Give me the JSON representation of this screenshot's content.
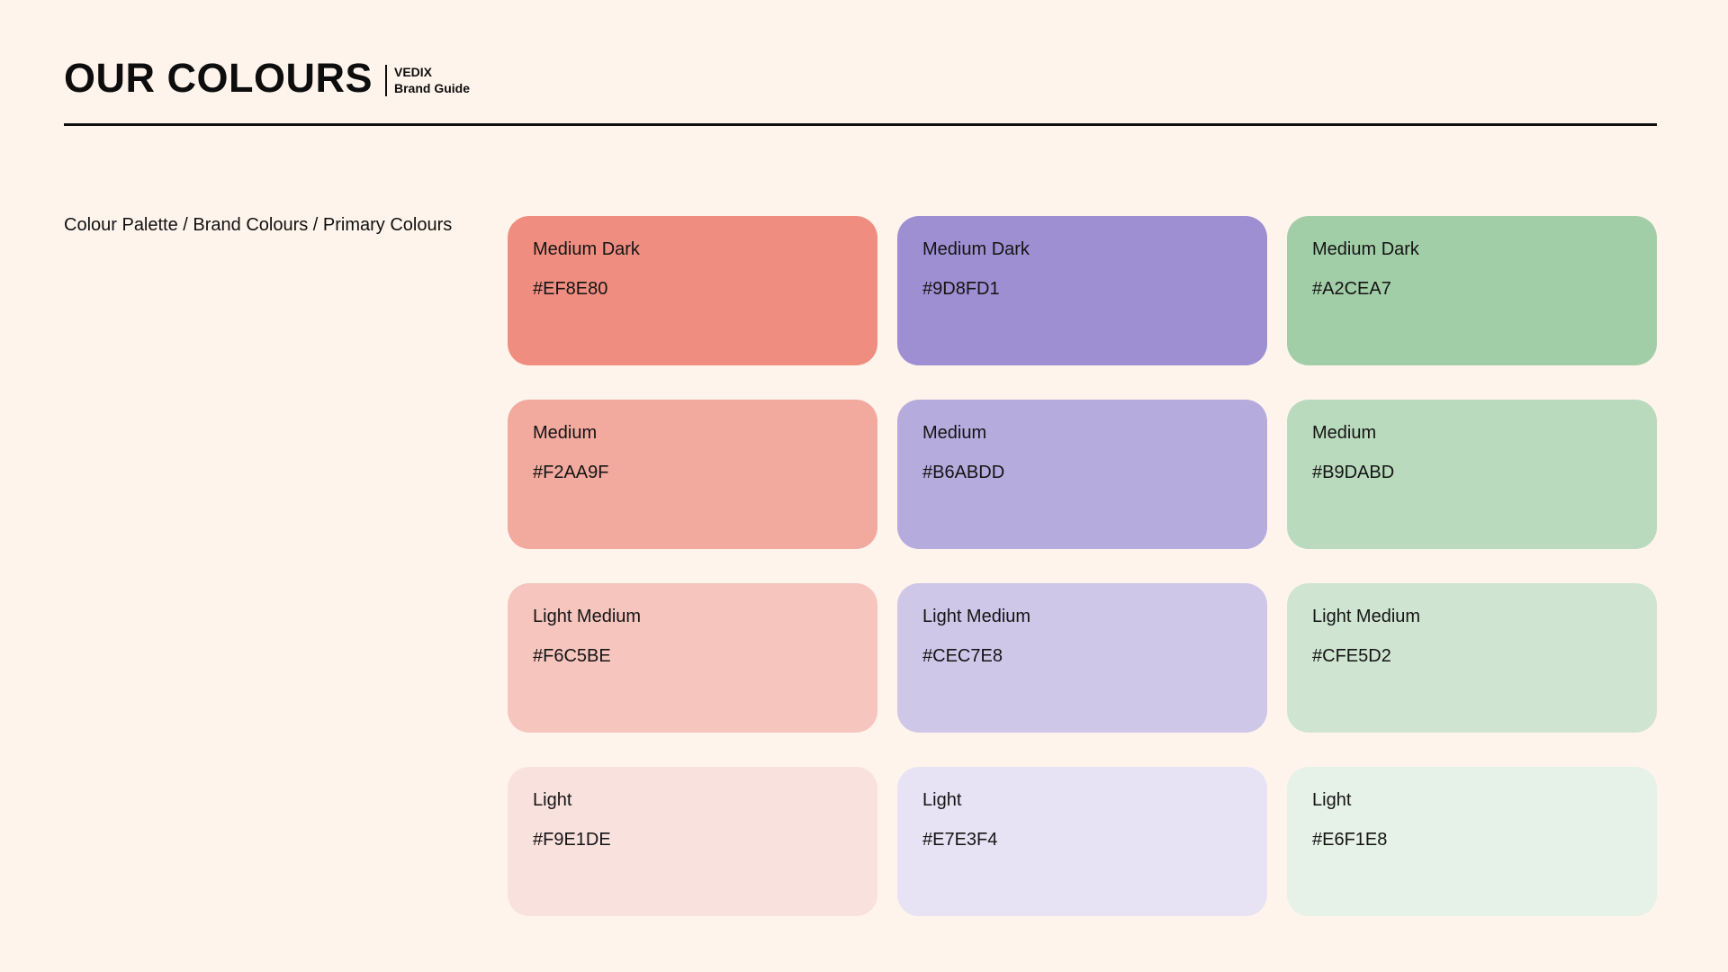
{
  "page": {
    "background": "#FFF4EC",
    "title": "OUR COLOURS",
    "brand": {
      "name": "VEDIX",
      "subtitle": "Brand Guide"
    },
    "breadcrumb": "Colour Palette / Brand Colours / Primary Colours"
  },
  "palette": {
    "swatches": [
      {
        "label": "Medium Dark",
        "hex": "#EF8E80"
      },
      {
        "label": "Medium Dark",
        "hex": "#9D8FD1"
      },
      {
        "label": "Medium Dark",
        "hex": "#A2CEA7"
      },
      {
        "label": "Medium",
        "hex": "#F2AA9F"
      },
      {
        "label": "Medium",
        "hex": "#B6ABDD"
      },
      {
        "label": "Medium",
        "hex": "#B9DABD"
      },
      {
        "label": "Light Medium",
        "hex": "#F6C5BE"
      },
      {
        "label": "Light Medium",
        "hex": "#CEC7E8"
      },
      {
        "label": "Light Medium",
        "hex": "#CFE5D2"
      },
      {
        "label": "Light",
        "hex": "#F9E1DE"
      },
      {
        "label": "Light",
        "hex": "#E7E3F4"
      },
      {
        "label": "Light",
        "hex": "#E6F1E8"
      }
    ]
  }
}
